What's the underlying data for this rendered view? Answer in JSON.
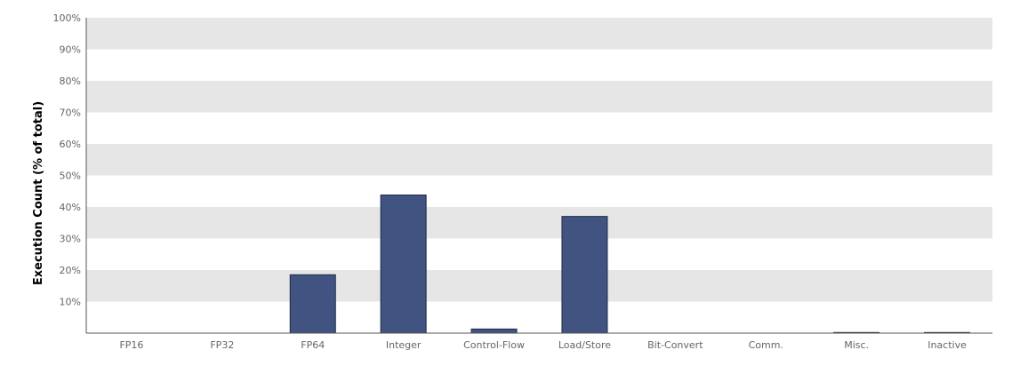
{
  "chart_data": {
    "type": "bar",
    "title": "",
    "xlabel": "",
    "ylabel": "Execution Count (% of total)",
    "ylim": [
      0,
      100
    ],
    "yticks": [
      10,
      20,
      30,
      40,
      50,
      60,
      70,
      80,
      90,
      100
    ],
    "ytick_labels": [
      "10%",
      "20%",
      "30%",
      "40%",
      "50%",
      "60%",
      "70%",
      "80%",
      "90%",
      "100%"
    ],
    "grid": "alternating horizontal bands",
    "categories": [
      "FP16",
      "FP32",
      "FP64",
      "Integer",
      "Control-Flow",
      "Load/Store",
      "Bit-Convert",
      "Comm.",
      "Misc.",
      "Inactive"
    ],
    "values": [
      0,
      0,
      18.5,
      43.8,
      1.3,
      37.0,
      0,
      0,
      0.2,
      0.2
    ],
    "colors": {
      "bar": "#415481",
      "bar_border": "#1f2a44",
      "band": "#e6e6e6"
    }
  }
}
